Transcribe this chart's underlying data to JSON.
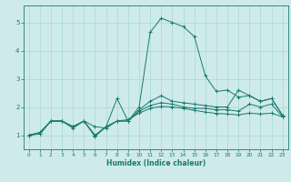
{
  "title": "",
  "xlabel": "Humidex (Indice chaleur)",
  "bg_color": "#ceeaea",
  "grid_color": "#a8d8d8",
  "line_color": "#1a7a6e",
  "xlim": [
    -0.5,
    23.5
  ],
  "ylim": [
    0.5,
    5.6
  ],
  "xticks": [
    0,
    1,
    2,
    3,
    4,
    5,
    6,
    7,
    8,
    9,
    10,
    11,
    12,
    13,
    14,
    15,
    16,
    17,
    18,
    19,
    20,
    21,
    22,
    23
  ],
  "yticks": [
    1,
    2,
    3,
    4,
    5
  ],
  "series": [
    {
      "x": [
        0,
        1,
        2,
        3,
        4,
        5,
        6,
        7,
        8,
        9,
        10,
        11,
        12,
        13,
        14,
        15,
        16,
        17,
        18,
        19,
        20,
        21,
        22,
        23
      ],
      "y": [
        1.0,
        1.1,
        1.5,
        1.5,
        1.25,
        1.5,
        1.3,
        1.25,
        1.5,
        1.5,
        2.0,
        4.65,
        5.15,
        5.0,
        4.85,
        4.5,
        3.1,
        2.55,
        2.6,
        2.35,
        2.4,
        2.2,
        2.3,
        1.7
      ]
    },
    {
      "x": [
        0,
        1,
        2,
        3,
        4,
        5,
        6,
        7,
        8,
        9,
        10,
        11,
        12,
        13,
        14,
        15,
        16,
        17,
        18,
        19,
        20,
        21,
        22,
        23
      ],
      "y": [
        1.0,
        1.05,
        1.5,
        1.5,
        1.3,
        1.5,
        0.95,
        1.3,
        2.3,
        1.5,
        1.9,
        2.2,
        2.4,
        2.2,
        2.15,
        2.1,
        2.05,
        2.0,
        2.0,
        2.6,
        2.4,
        2.2,
        2.3,
        1.7
      ]
    },
    {
      "x": [
        0,
        1,
        2,
        3,
        4,
        5,
        6,
        7,
        8,
        9,
        10,
        11,
        12,
        13,
        14,
        15,
        16,
        17,
        18,
        19,
        20,
        21,
        22,
        23
      ],
      "y": [
        1.0,
        1.05,
        1.5,
        1.5,
        1.3,
        1.5,
        0.98,
        1.3,
        1.5,
        1.5,
        1.85,
        2.05,
        2.15,
        2.1,
        2.0,
        1.95,
        1.95,
        1.9,
        1.9,
        1.85,
        2.1,
        2.0,
        2.1,
        1.65
      ]
    },
    {
      "x": [
        0,
        1,
        2,
        3,
        4,
        5,
        6,
        7,
        8,
        9,
        10,
        11,
        12,
        13,
        14,
        15,
        16,
        17,
        18,
        19,
        20,
        21,
        22,
        23
      ],
      "y": [
        1.0,
        1.05,
        1.5,
        1.5,
        1.3,
        1.5,
        1.0,
        1.3,
        1.5,
        1.55,
        1.78,
        1.95,
        2.02,
        2.0,
        1.95,
        1.88,
        1.82,
        1.77,
        1.75,
        1.72,
        1.78,
        1.75,
        1.78,
        1.65
      ]
    }
  ]
}
